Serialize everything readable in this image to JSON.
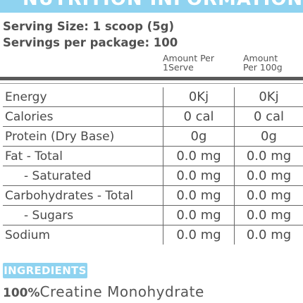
{
  "banner": {
    "title": "NUTRITION INFORMATION"
  },
  "serving": {
    "size": "Serving Size: 1 scoop (5g)",
    "per_package": "Servings per package: 100"
  },
  "columns": {
    "per_serve": [
      "Amount Per",
      "1Serve"
    ],
    "per_100g": [
      "Amount",
      "Per 100g"
    ]
  },
  "rows": [
    {
      "name": "Energy",
      "per_serve": "0Kj",
      "per_100g": "0Kj",
      "indent": false
    },
    {
      "name": "Calories",
      "per_serve": "0  cal",
      "per_100g": "0  cal",
      "indent": false
    },
    {
      "name": "Protein (Dry Base)",
      "per_serve": "0g",
      "per_100g": "0g",
      "indent": false
    },
    {
      "name": "Fat - Total",
      "per_serve": "0.0 mg",
      "per_100g": "0.0 mg",
      "indent": false
    },
    {
      "name": "- Saturated",
      "per_serve": "0.0 mg",
      "per_100g": "0.0 mg",
      "indent": true
    },
    {
      "name": "Carbohydrates - Total",
      "per_serve": "0.0 mg",
      "per_100g": "0.0 mg",
      "indent": false
    },
    {
      "name": "- Sugars",
      "per_serve": "0.0 mg",
      "per_100g": "0.0 mg",
      "indent": true
    },
    {
      "name": "Sodium",
      "per_serve": "0.0 mg",
      "per_100g": "0.0 mg",
      "indent": false
    }
  ],
  "ingredients": {
    "label": "INGREDIENTS",
    "percent": "100%",
    "name": "Creatine Monohydrate"
  },
  "colors": {
    "accent": "#8fd3f0",
    "rule": "#5a5a5a"
  }
}
